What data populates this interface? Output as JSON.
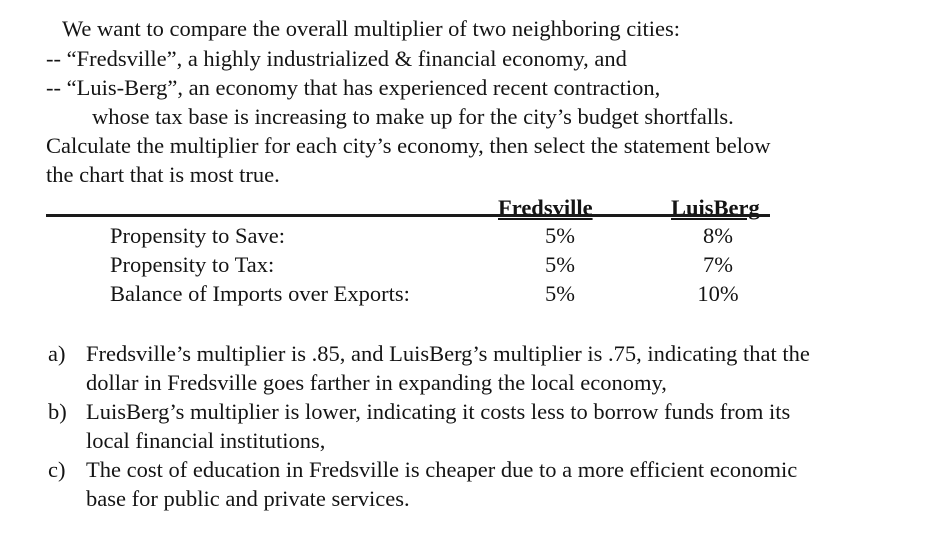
{
  "intro": {
    "line1": "We want to compare the overall multiplier of two neighboring cities:",
    "line2": "-- “Fredsville”, a highly industrialized & financial economy, and",
    "line3": "-- “Luis-Berg”, an economy that has experienced recent contraction,",
    "line4": "whose tax base is increasing to make up for the city’s budget shortfalls.",
    "line5": "Calculate the multiplier for each city’s economy, then select the statement below",
    "line6": "the chart that is most true."
  },
  "table": {
    "headers": [
      "Fredsville",
      "LuisBerg"
    ],
    "rows": [
      {
        "label": "Propensity to Save:",
        "fredsville": "5%",
        "luisberg": "8%"
      },
      {
        "label": "Propensity to Tax:",
        "fredsville": "5%",
        "luisberg": "7%"
      },
      {
        "label": "Balance of Imports over Exports:",
        "fredsville": "5%",
        "luisberg": "10%"
      }
    ]
  },
  "options": [
    {
      "marker": "a)",
      "line1": "Fredsville’s multiplier is .85, and LuisBerg’s multiplier is .75, indicating that the",
      "line2": "dollar in Fredsville goes farther in expanding the local economy,"
    },
    {
      "marker": "b)",
      "line1": "LuisBerg’s multiplier is lower, indicating it costs less to borrow funds from its",
      "line2": "local financial institutions,"
    },
    {
      "marker": "c)",
      "line1": "The cost of education in Fredsville is cheaper due to a more efficient economic",
      "line2": "base for public and private services."
    }
  ]
}
